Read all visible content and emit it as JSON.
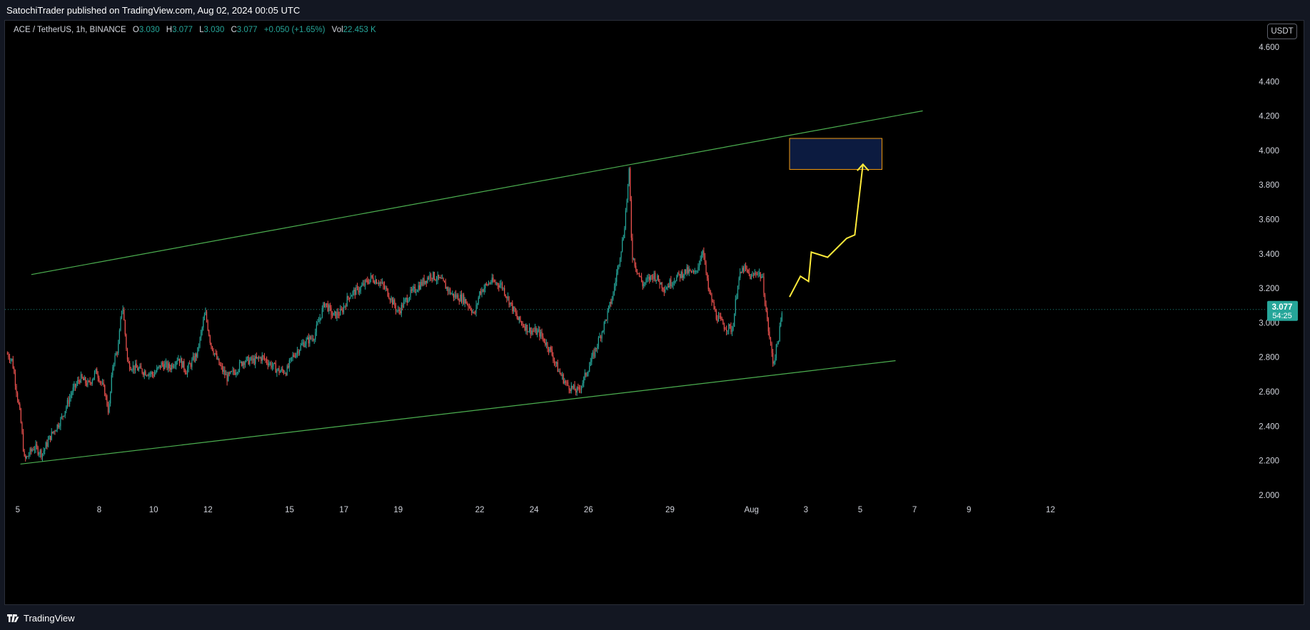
{
  "header": {
    "published_by": "SatochiTrader published on TradingView.com, Aug 02, 2024 00:05 UTC"
  },
  "legend": {
    "symbol": "ACE / TetherUS, 1h, BINANCE",
    "open_label": "O",
    "open": "3.030",
    "high_label": "H",
    "high": "3.077",
    "low_label": "L",
    "low": "3.030",
    "close_label": "C",
    "close": "3.077",
    "change": "+0.050 (+1.65%)",
    "volume_label": "Vol",
    "volume": "22.453 K"
  },
  "currency_button": "USDT",
  "footer": {
    "brand": "TradingView"
  },
  "chart_data": {
    "type": "candlestick",
    "title": "",
    "y_axis": {
      "side": "right",
      "ticks": [
        "4.600",
        "4.400",
        "4.200",
        "4.000",
        "3.800",
        "3.600",
        "3.400",
        "3.200",
        "3.000",
        "2.800",
        "2.600",
        "2.400",
        "2.200",
        "2.000"
      ]
    },
    "x_axis": {
      "ticks": [
        {
          "label": "5",
          "day": 5
        },
        {
          "label": "8",
          "day": 8
        },
        {
          "label": "10",
          "day": 10
        },
        {
          "label": "12",
          "day": 12
        },
        {
          "label": "15",
          "day": 15
        },
        {
          "label": "17",
          "day": 17
        },
        {
          "label": "19",
          "day": 19
        },
        {
          "label": "22",
          "day": 22
        },
        {
          "label": "24",
          "day": 24
        },
        {
          "label": "26",
          "day": 26
        },
        {
          "label": "29",
          "day": 29
        },
        {
          "label": "Aug",
          "day": 32
        },
        {
          "label": "3",
          "day": 34
        },
        {
          "label": "5",
          "day": 36
        },
        {
          "label": "7",
          "day": 38
        },
        {
          "label": "9",
          "day": 40
        },
        {
          "label": "12",
          "day": 43
        }
      ]
    },
    "price_path": [
      [
        4.62,
        2.82
      ],
      [
        4.8,
        2.78
      ],
      [
        5.1,
        2.45
      ],
      [
        5.25,
        2.2
      ],
      [
        5.6,
        2.28
      ],
      [
        5.9,
        2.24
      ],
      [
        6.2,
        2.34
      ],
      [
        6.6,
        2.44
      ],
      [
        7.0,
        2.6
      ],
      [
        7.3,
        2.68
      ],
      [
        7.6,
        2.64
      ],
      [
        7.9,
        2.72
      ],
      [
        8.2,
        2.6
      ],
      [
        8.35,
        2.48
      ],
      [
        8.5,
        2.76
      ],
      [
        8.7,
        2.86
      ],
      [
        8.85,
        3.12
      ],
      [
        9.05,
        2.76
      ],
      [
        9.3,
        2.74
      ],
      [
        9.6,
        2.72
      ],
      [
        10.0,
        2.7
      ],
      [
        10.3,
        2.76
      ],
      [
        10.6,
        2.74
      ],
      [
        10.9,
        2.8
      ],
      [
        11.2,
        2.72
      ],
      [
        11.6,
        2.82
      ],
      [
        11.9,
        3.06
      ],
      [
        12.1,
        2.88
      ],
      [
        12.4,
        2.76
      ],
      [
        12.7,
        2.68
      ],
      [
        13.0,
        2.72
      ],
      [
        13.3,
        2.78
      ],
      [
        13.7,
        2.78
      ],
      [
        14.0,
        2.8
      ],
      [
        14.3,
        2.76
      ],
      [
        14.6,
        2.72
      ],
      [
        14.9,
        2.72
      ],
      [
        15.1,
        2.8
      ],
      [
        15.5,
        2.88
      ],
      [
        15.9,
        2.92
      ],
      [
        16.3,
        3.12
      ],
      [
        16.6,
        3.04
      ],
      [
        16.9,
        3.06
      ],
      [
        17.2,
        3.16
      ],
      [
        17.6,
        3.2
      ],
      [
        18.0,
        3.26
      ],
      [
        18.3,
        3.24
      ],
      [
        18.6,
        3.18
      ],
      [
        19.0,
        3.06
      ],
      [
        19.4,
        3.16
      ],
      [
        19.8,
        3.22
      ],
      [
        20.2,
        3.28
      ],
      [
        20.6,
        3.24
      ],
      [
        21.0,
        3.16
      ],
      [
        21.4,
        3.14
      ],
      [
        21.7,
        3.08
      ],
      [
        21.8,
        3.04
      ],
      [
        22.0,
        3.18
      ],
      [
        22.4,
        3.24
      ],
      [
        22.8,
        3.22
      ],
      [
        23.1,
        3.12
      ],
      [
        23.4,
        3.02
      ],
      [
        23.8,
        2.96
      ],
      [
        24.2,
        2.94
      ],
      [
        24.6,
        2.84
      ],
      [
        24.9,
        2.72
      ],
      [
        25.2,
        2.64
      ],
      [
        25.6,
        2.6
      ],
      [
        25.8,
        2.66
      ],
      [
        26.2,
        2.82
      ],
      [
        26.6,
        3.0
      ],
      [
        26.9,
        3.16
      ],
      [
        27.1,
        3.34
      ],
      [
        27.3,
        3.52
      ],
      [
        27.5,
        3.88
      ],
      [
        27.6,
        3.4
      ],
      [
        27.8,
        3.3
      ],
      [
        28.0,
        3.22
      ],
      [
        28.4,
        3.28
      ],
      [
        28.8,
        3.2
      ],
      [
        29.2,
        3.26
      ],
      [
        29.6,
        3.3
      ],
      [
        29.9,
        3.28
      ],
      [
        30.1,
        3.36
      ],
      [
        30.2,
        3.44
      ],
      [
        30.4,
        3.2
      ],
      [
        30.7,
        3.04
      ],
      [
        31.0,
        2.98
      ],
      [
        31.3,
        2.96
      ],
      [
        31.5,
        3.24
      ],
      [
        31.7,
        3.32
      ],
      [
        32.0,
        3.26
      ],
      [
        32.2,
        3.3
      ],
      [
        32.4,
        3.26
      ],
      [
        32.6,
        2.98
      ],
      [
        32.8,
        2.76
      ],
      [
        33.0,
        2.92
      ],
      [
        33.15,
        3.077
      ]
    ],
    "last_price": "3.077",
    "countdown": "54:25",
    "trendlines": [
      {
        "name": "channel-top",
        "color": "#4caf50",
        "points": [
          [
            5.5,
            3.28
          ],
          [
            38.3,
            4.23
          ]
        ]
      },
      {
        "name": "channel-bottom",
        "color": "#4caf50",
        "points": [
          [
            5.1,
            2.18
          ],
          [
            37.3,
            2.78
          ]
        ]
      }
    ],
    "target_zone": {
      "x0": 33.4,
      "x1": 36.8,
      "price_low": 3.89,
      "price_high": 4.07,
      "fill": "#0c1b40",
      "border": "#f39c12"
    },
    "projection": {
      "color": "#ffeb3b",
      "points": [
        [
          33.4,
          3.15
        ],
        [
          33.8,
          3.27
        ],
        [
          34.1,
          3.24
        ],
        [
          34.2,
          3.41
        ],
        [
          34.8,
          3.38
        ],
        [
          35.5,
          3.49
        ],
        [
          35.8,
          3.51
        ],
        [
          36.1,
          3.92
        ]
      ]
    }
  }
}
